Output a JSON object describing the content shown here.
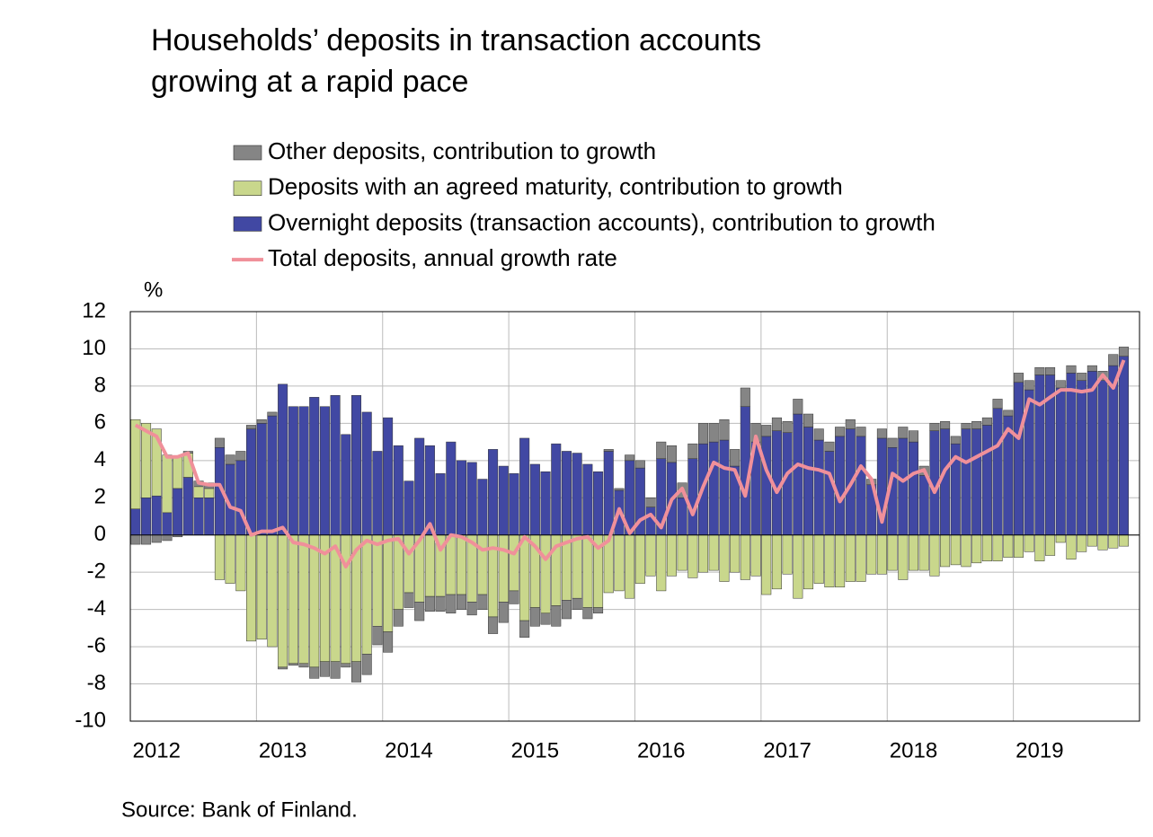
{
  "chart_data": {
    "type": "bar",
    "title": [
      "Households’ deposits in transaction accounts",
      "growing at a rapid pace"
    ],
    "y_label": "%",
    "source": "Source: Bank of Finland.",
    "ylim": [
      -10,
      12
    ],
    "yticks": [
      -10,
      -8,
      -6,
      -4,
      -2,
      0,
      2,
      4,
      6,
      8,
      10,
      12
    ],
    "grid": true,
    "categories": [
      null,
      null,
      "2012",
      null,
      null,
      null,
      null,
      null,
      null,
      null,
      null,
      null,
      null,
      null,
      "2013",
      null,
      null,
      null,
      null,
      null,
      null,
      null,
      null,
      null,
      null,
      null,
      "2014",
      null,
      null,
      null,
      null,
      null,
      null,
      null,
      null,
      null,
      null,
      null,
      "2015",
      null,
      null,
      null,
      null,
      null,
      null,
      null,
      null,
      null,
      null,
      null,
      "2016",
      null,
      null,
      null,
      null,
      null,
      null,
      null,
      null,
      null,
      null,
      null,
      "2017",
      null,
      null,
      null,
      null,
      null,
      null,
      null,
      null,
      null,
      null,
      null,
      "2018",
      null,
      null,
      null,
      null,
      null,
      null,
      null,
      null,
      null,
      null,
      null,
      "2019",
      null,
      null,
      null,
      null,
      null,
      null,
      null,
      null
    ],
    "series": [
      {
        "name": "Other deposits, contribution to growth",
        "type": "bar",
        "color": "#858585",
        "values": [
          -0.5,
          -0.5,
          -0.4,
          -0.3,
          -0.1,
          0.1,
          0.3,
          0.3,
          0.5,
          0.5,
          0.5,
          0.2,
          0.2,
          0.2,
          -0.1,
          -0.1,
          -0.2,
          -0.6,
          -0.8,
          -0.9,
          -0.2,
          -1.1,
          -1.1,
          -1.0,
          -1.1,
          -0.9,
          -0.8,
          -1.0,
          -0.8,
          -0.8,
          -1.0,
          -0.8,
          -0.7,
          -0.8,
          -0.9,
          -1.1,
          -0.7,
          -0.9,
          -1.0,
          -0.6,
          -1.1,
          -1.0,
          -0.6,
          -0.6,
          -0.3,
          0.1,
          0.1,
          0.3,
          0.4,
          0.5,
          0.9,
          0.9,
          0.8,
          0.8,
          1.1,
          1.0,
          1.1,
          0.9,
          1.0,
          1.0,
          0.6,
          0.7,
          0.6,
          0.8,
          0.7,
          0.6,
          0.5,
          0.5,
          0.5,
          0.5,
          0.3,
          0.5,
          0.5,
          0.6,
          0.6,
          0.5,
          0.4,
          0.4,
          0.4,
          0.3,
          0.4,
          0.4,
          0.5,
          0.3,
          0.5,
          0.5,
          0.4,
          0.4,
          0.4,
          0.4,
          0.4,
          0.3,
          0.5,
          0.6,
          0.5
        ]
      },
      {
        "name": "Deposits with an agreed maturity, contribution to growth",
        "type": "bar",
        "color": "#c9d78c",
        "values": [
          4.8,
          4.0,
          3.6,
          3.1,
          1.7,
          1.3,
          0.6,
          0.5,
          -2.4,
          -2.6,
          -3.0,
          -5.7,
          -5.6,
          -6.0,
          -7.1,
          -6.9,
          -6.9,
          -7.1,
          -6.8,
          -6.8,
          -6.9,
          -6.8,
          -6.4,
          -4.9,
          -5.2,
          -4.0,
          -3.1,
          -3.6,
          -3.3,
          -3.3,
          -3.2,
          -3.2,
          -3.6,
          -3.2,
          -4.4,
          -3.6,
          -3.0,
          -4.6,
          -3.9,
          -4.2,
          -3.8,
          -3.5,
          -3.4,
          -3.9,
          -3.9,
          -3.1,
          -3.0,
          -3.4,
          -2.6,
          -2.2,
          -3.0,
          -2.2,
          -1.9,
          -2.3,
          -2.0,
          -1.9,
          -2.5,
          -2.0,
          -2.4,
          -2.2,
          -3.2,
          -2.9,
          -2.1,
          -3.4,
          -2.9,
          -2.6,
          -2.8,
          -2.8,
          -2.5,
          -2.5,
          -2.1,
          -2.1,
          -1.9,
          -2.4,
          -1.9,
          -1.9,
          -2.2,
          -1.7,
          -1.6,
          -1.7,
          -1.5,
          -1.4,
          -1.4,
          -1.2,
          -1.2,
          -0.9,
          -1.4,
          -1.1,
          -0.4,
          -1.3,
          -0.9,
          -0.6,
          -0.8,
          -0.7,
          -0.6
        ]
      },
      {
        "name": "Overnight deposits (transaction accounts), contribution to growth",
        "type": "bar",
        "color": "#4148a3",
        "values": [
          1.4,
          2.0,
          2.1,
          1.2,
          2.5,
          3.1,
          2.0,
          2.0,
          4.7,
          3.8,
          4.0,
          5.7,
          6.0,
          6.4,
          8.1,
          6.9,
          6.9,
          7.4,
          6.9,
          7.5,
          5.4,
          7.5,
          6.6,
          4.5,
          6.3,
          4.8,
          2.9,
          5.2,
          4.8,
          3.3,
          5.0,
          4.0,
          3.9,
          3.0,
          4.6,
          3.7,
          3.3,
          5.2,
          3.8,
          3.4,
          4.9,
          4.5,
          4.4,
          3.8,
          3.4,
          4.5,
          2.4,
          4.0,
          3.6,
          1.5,
          4.1,
          3.9,
          2.0,
          4.1,
          4.9,
          5.0,
          5.1,
          3.7,
          6.9,
          5.0,
          5.3,
          5.6,
          5.5,
          6.5,
          5.8,
          5.1,
          4.5,
          5.3,
          5.7,
          5.3,
          2.7,
          5.2,
          4.7,
          5.2,
          5.0,
          3.2,
          5.6,
          5.7,
          4.9,
          5.7,
          5.7,
          5.9,
          6.8,
          6.4,
          8.2,
          7.8,
          8.6,
          8.6,
          7.9,
          8.7,
          8.3,
          8.8,
          8.3,
          9.1,
          9.6
        ]
      },
      {
        "name": "Total deposits, annual growth rate",
        "type": "line",
        "color": "#f0909a",
        "values": [
          5.9,
          5.6,
          5.3,
          4.2,
          4.2,
          4.4,
          2.8,
          2.7,
          2.7,
          1.5,
          1.3,
          0.0,
          0.2,
          0.2,
          0.4,
          -0.4,
          -0.5,
          -0.7,
          -1.0,
          -0.6,
          -1.7,
          -0.8,
          -0.3,
          -0.5,
          -0.3,
          -0.2,
          -1.0,
          -0.3,
          0.6,
          -0.8,
          0.0,
          -0.1,
          -0.4,
          -0.8,
          -0.7,
          -0.8,
          -1.0,
          -0.1,
          -0.6,
          -1.3,
          -0.6,
          -0.4,
          -0.2,
          -0.1,
          -0.7,
          -0.3,
          1.4,
          0.1,
          0.8,
          1.1,
          0.4,
          1.9,
          2.5,
          1.1,
          2.6,
          3.9,
          3.6,
          3.5,
          2.1,
          5.3,
          3.5,
          2.3,
          3.3,
          3.8,
          3.6,
          3.5,
          3.3,
          1.8,
          2.7,
          3.7,
          3.0,
          0.7,
          3.3,
          2.9,
          3.3,
          3.5,
          2.3,
          3.5,
          4.2,
          3.9,
          4.2,
          4.5,
          4.8,
          5.7,
          5.2,
          7.3,
          7.0,
          7.4,
          7.8,
          7.8,
          7.7,
          7.8,
          8.6,
          7.9,
          9.4
        ]
      }
    ]
  }
}
